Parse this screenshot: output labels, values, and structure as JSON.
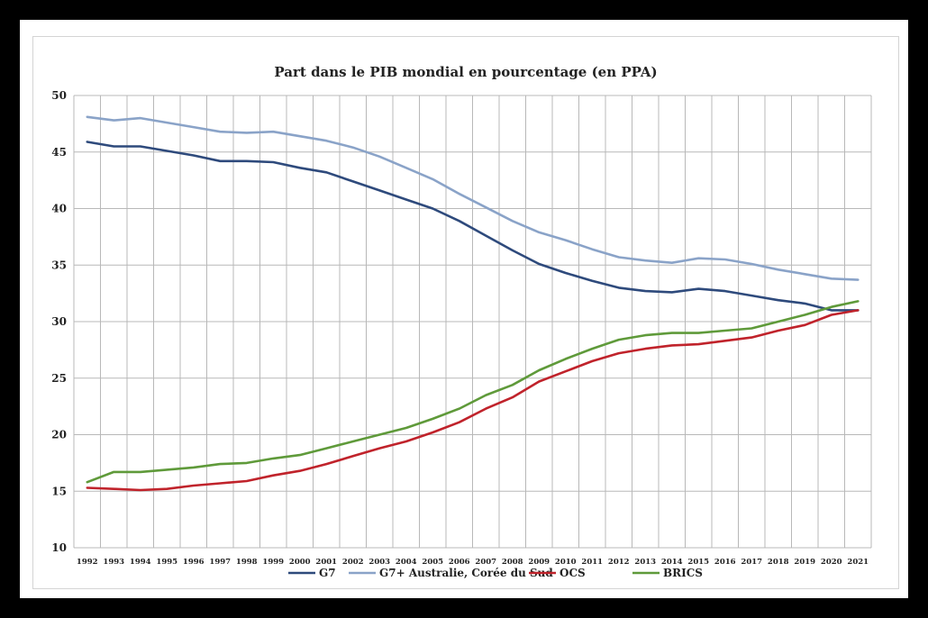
{
  "chart_data": {
    "type": "line",
    "title": "Part dans le PIB mondial en pourcentage (en PPA)",
    "x": [
      "1992",
      "1993",
      "1994",
      "1995",
      "1996",
      "1997",
      "1998",
      "1999",
      "2000",
      "2001",
      "2002",
      "2003",
      "2004",
      "2005",
      "2006",
      "2007",
      "2008",
      "2009",
      "2010",
      "2011",
      "2012",
      "2013",
      "2014",
      "2015",
      "2016",
      "2017",
      "2018",
      "2019",
      "2020",
      "2021"
    ],
    "ylim": [
      10,
      50
    ],
    "yticks": [
      "10",
      "15",
      "20",
      "25",
      "30",
      "35",
      "40",
      "45",
      "50"
    ],
    "grid": true,
    "legend_position": "bottom",
    "series": [
      {
        "name": "G7",
        "color": "#2e4a7c",
        "values": [
          45.9,
          45.5,
          45.5,
          45.1,
          44.7,
          44.2,
          44.2,
          44.1,
          43.6,
          43.2,
          42.4,
          41.6,
          40.8,
          40.0,
          38.9,
          37.6,
          36.3,
          35.1,
          34.3,
          33.6,
          33.0,
          32.7,
          32.6,
          32.9,
          32.7,
          32.3,
          31.9,
          31.6,
          31.0,
          31.0
        ]
      },
      {
        "name": "G7+ Australie, Corée du Sud",
        "color": "#8aa3c8",
        "values": [
          48.1,
          47.8,
          48.0,
          47.6,
          47.2,
          46.8,
          46.7,
          46.8,
          46.4,
          46.0,
          45.4,
          44.6,
          43.6,
          42.6,
          41.3,
          40.1,
          38.9,
          37.9,
          37.2,
          36.4,
          35.7,
          35.4,
          35.2,
          35.6,
          35.5,
          35.1,
          34.6,
          34.2,
          33.8,
          33.7
        ]
      },
      {
        "name": "OCS",
        "color": "#c0232b",
        "values": [
          15.3,
          15.2,
          15.1,
          15.2,
          15.5,
          15.7,
          15.9,
          16.4,
          16.8,
          17.4,
          18.1,
          18.8,
          19.4,
          20.2,
          21.1,
          22.3,
          23.3,
          24.7,
          25.6,
          26.5,
          27.2,
          27.6,
          27.9,
          28.0,
          28.3,
          28.6,
          29.2,
          29.7,
          30.6,
          31.0
        ]
      },
      {
        "name": "BRICS",
        "color": "#5f9a3a",
        "values": [
          15.8,
          16.7,
          16.7,
          16.9,
          17.1,
          17.4,
          17.5,
          17.9,
          18.2,
          18.8,
          19.4,
          20.0,
          20.6,
          21.4,
          22.3,
          23.5,
          24.4,
          25.7,
          26.7,
          27.6,
          28.4,
          28.8,
          29.0,
          29.0,
          29.2,
          29.4,
          30.0,
          30.6,
          31.3,
          31.8
        ]
      }
    ]
  }
}
